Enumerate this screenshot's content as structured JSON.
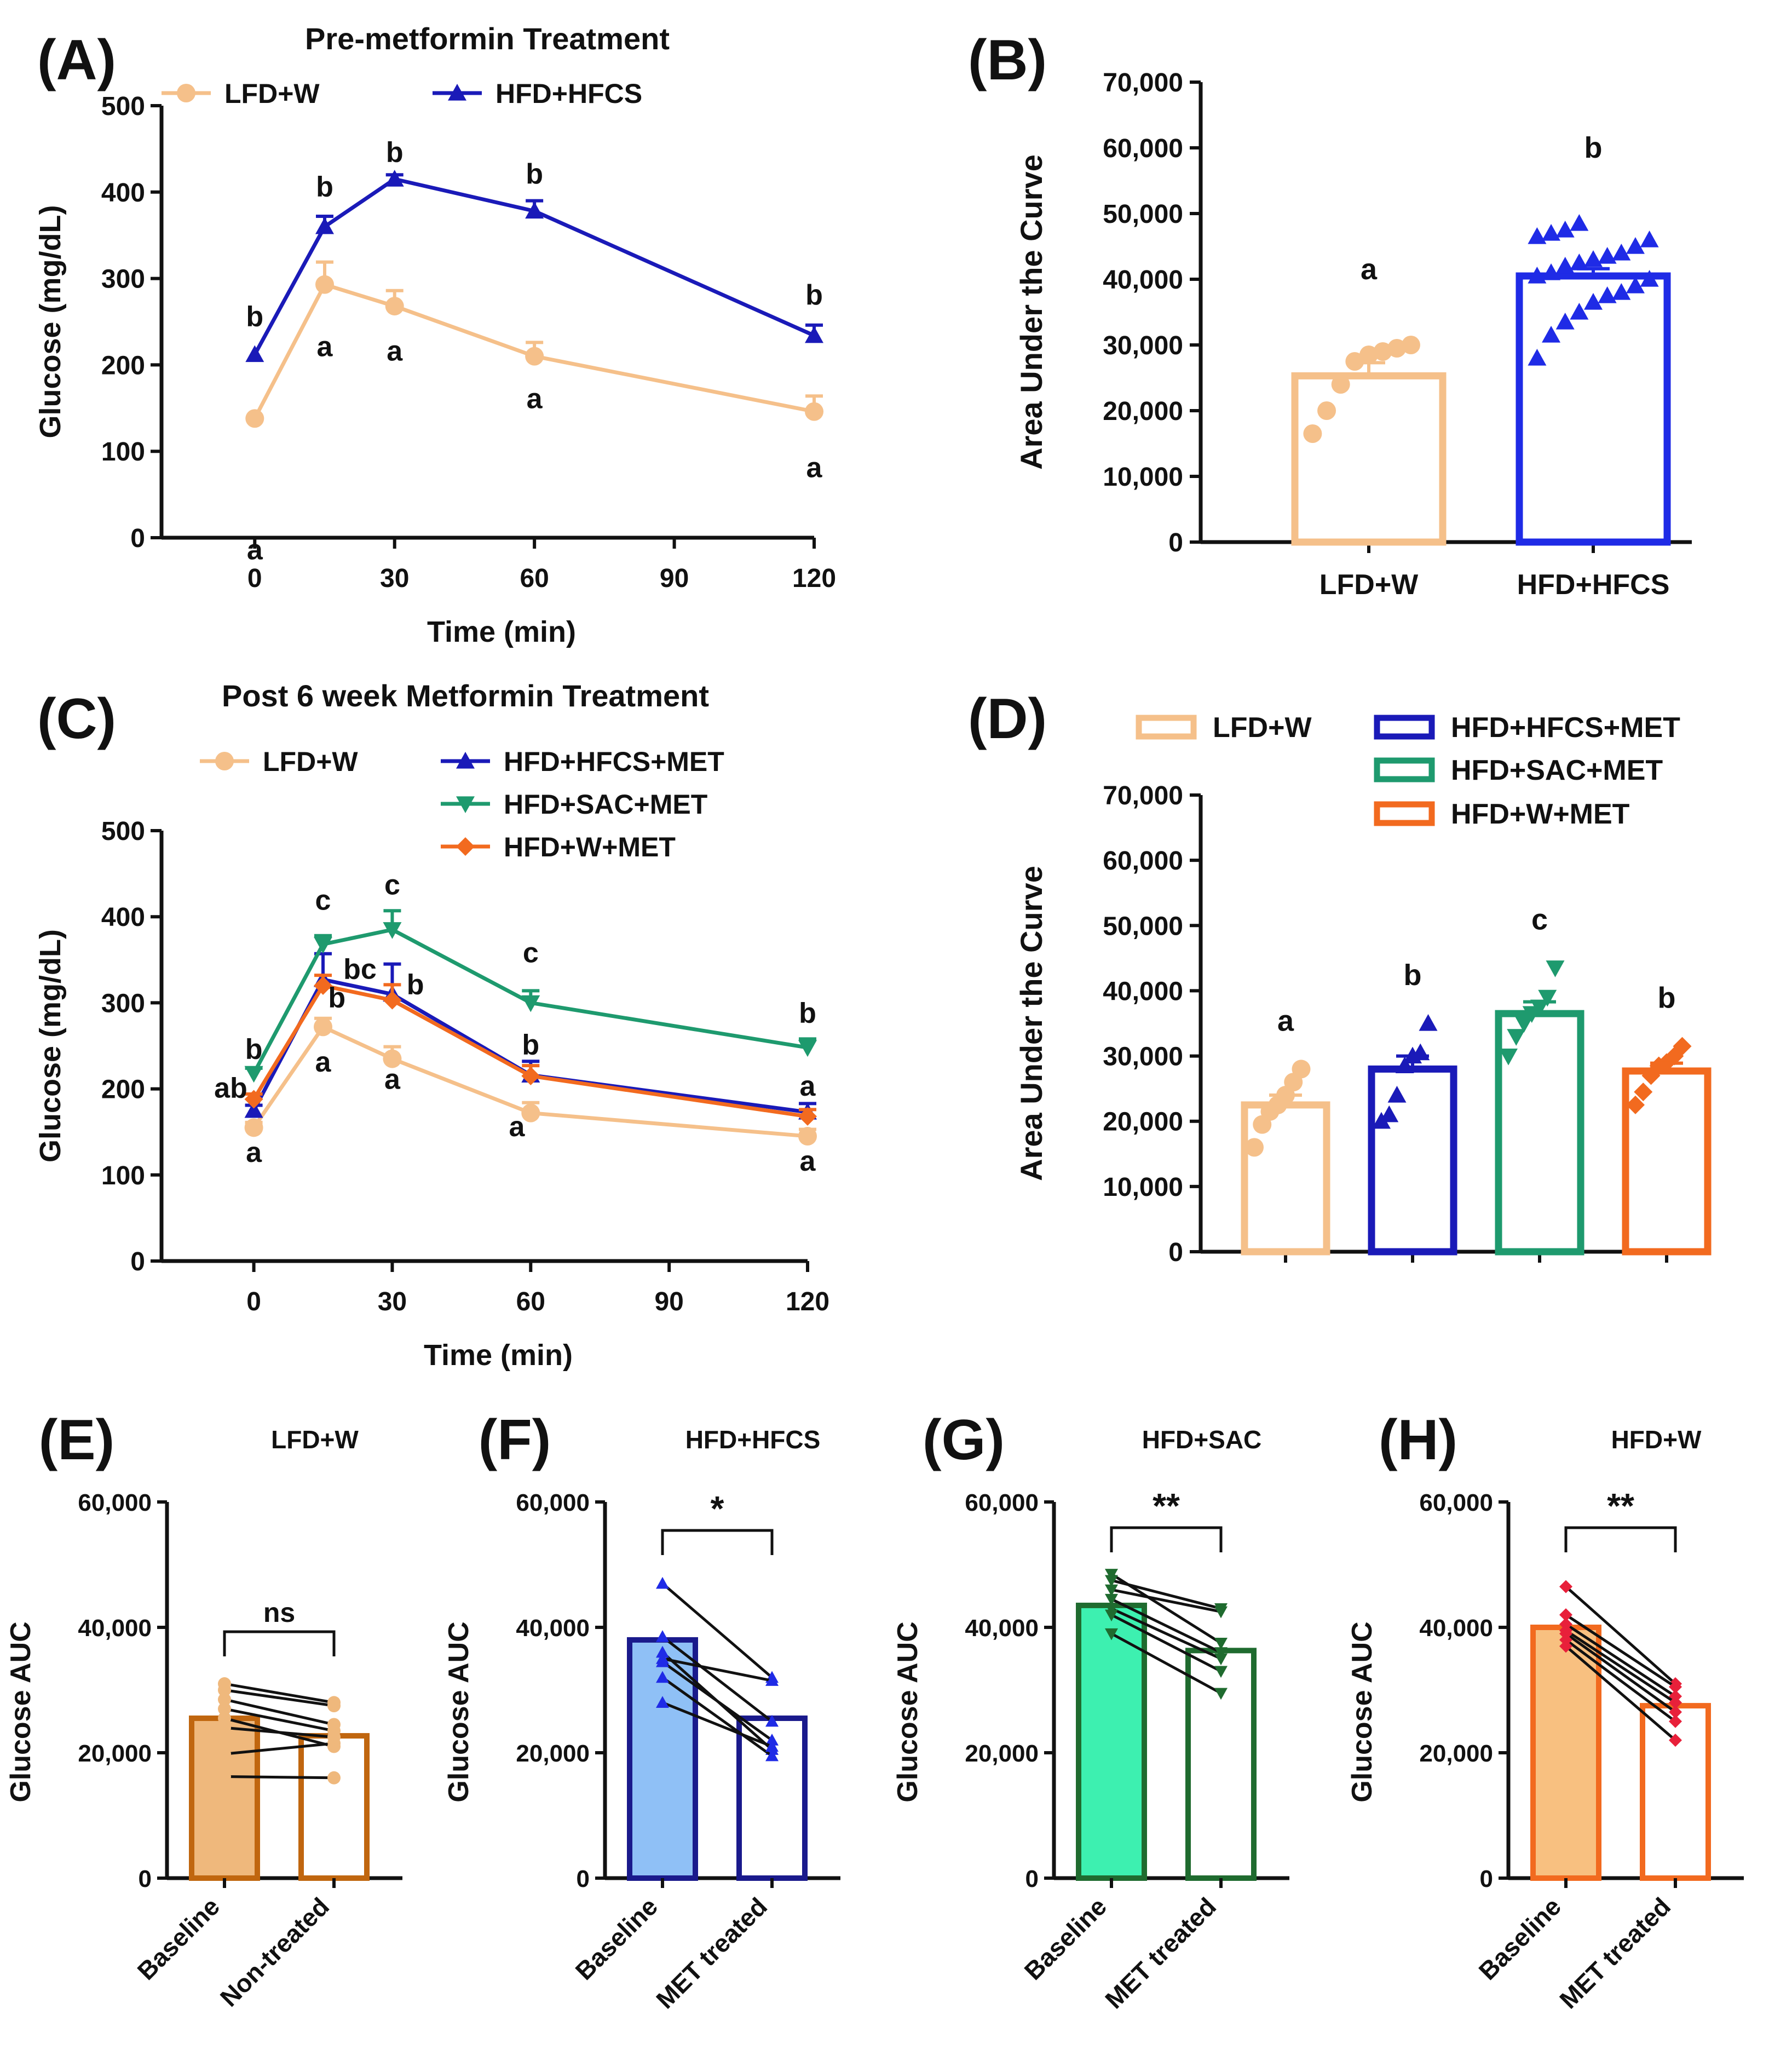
{
  "colors": {
    "lfd_w": "#F5C08A",
    "hfd_hfcs": "#1A1AB8",
    "hfd_hfcs_bar": "#1F2BE6",
    "hfd_sac": "#1E9A6E",
    "hfd_w": "#F26A1F",
    "axis": "#111111",
    "e_base_fill": "#EFB87C",
    "e_stroke": "#C0660F",
    "f_base_fill": "#8FC0F6",
    "f_stroke": "#1A1A8C",
    "g_base_fill": "#3DF0B0",
    "g_stroke": "#1F6B2F",
    "h_base_fill": "#F8C080",
    "h_stroke": "#F26A1F",
    "h_point": "#E8203A"
  },
  "chart_data": [
    {
      "panel": "(A)",
      "type": "line",
      "title": "Pre-metformin Treatment",
      "xlabel": "Time (min)",
      "ylabel": "Glucose (mg/dL)",
      "xlim": [
        -20,
        120
      ],
      "ylim": [
        0,
        500
      ],
      "xticks": [
        0,
        30,
        60,
        90,
        120
      ],
      "yticks": [
        0,
        100,
        200,
        300,
        400,
        500
      ],
      "legend": "top",
      "series": [
        {
          "name": "LFD+W",
          "color": "#F5C08A",
          "marker": "circle",
          "x": [
            0,
            15,
            30,
            60,
            120
          ],
          "values": [
            138,
            293,
            268,
            210,
            146
          ],
          "err": [
            0,
            26,
            18,
            16,
            18
          ],
          "letters": [
            "a",
            "a",
            "a",
            "a",
            "a"
          ]
        },
        {
          "name": "HFD+HFCS",
          "color": "#1A1AB8",
          "marker": "triangle-up",
          "x": [
            0,
            15,
            30,
            60,
            120
          ],
          "values": [
            212,
            360,
            415,
            378,
            234
          ],
          "err": [
            0,
            12,
            5,
            12,
            12
          ],
          "letters": [
            "b",
            "b",
            "b",
            "b",
            "b"
          ]
        }
      ]
    },
    {
      "panel": "(B)",
      "type": "bar",
      "ylabel": "Area Under the Curve",
      "ylim": [
        0,
        70000
      ],
      "yticks": [
        "0",
        "10,000",
        "20,000",
        "30,000",
        "40,000",
        "50,000",
        "60,000",
        "70,000"
      ],
      "categories": [
        "LFD+W",
        "HFD+HFCS"
      ],
      "values": [
        25300,
        40500
      ],
      "err": [
        2000,
        1100
      ],
      "letters": [
        "a",
        "b"
      ],
      "points": [
        [
          16500,
          20000,
          24000,
          27500,
          28500,
          29000,
          29500,
          30000
        ],
        [
          28000,
          31500,
          33500,
          35000,
          36500,
          37500,
          38000,
          39000,
          40000,
          40500,
          41000,
          42000,
          42500,
          43000,
          43500,
          44000,
          45000,
          46000,
          46500,
          47000,
          47500,
          48500
        ]
      ]
    },
    {
      "panel": "(C)",
      "type": "line",
      "title": "Post 6 week Metformin Treatment",
      "xlabel": "Time (min)",
      "ylabel": "Glucose (mg/dL)",
      "xlim": [
        -20,
        120
      ],
      "ylim": [
        0,
        500
      ],
      "xticks": [
        0,
        30,
        60,
        90,
        120
      ],
      "yticks": [
        0,
        100,
        200,
        300,
        400,
        500
      ],
      "legend": "top",
      "series": [
        {
          "name": "LFD+W",
          "color": "#F5C08A",
          "marker": "circle",
          "x": [
            0,
            15,
            30,
            60,
            120
          ],
          "values": [
            155,
            272,
            235,
            172,
            145
          ],
          "err": [
            6,
            10,
            14,
            12,
            8
          ]
        },
        {
          "name": "HFD+HFCS+MET",
          "color": "#1A1AB8",
          "marker": "triangle-up",
          "x": [
            0,
            15,
            30,
            60,
            120
          ],
          "values": [
            175,
            327,
            310,
            216,
            173
          ],
          "err": [
            6,
            30,
            35,
            16,
            10
          ]
        },
        {
          "name": "HFD+SAC+MET",
          "color": "#1E9A6E",
          "marker": "triangle-down",
          "x": [
            0,
            15,
            30,
            60,
            120
          ],
          "values": [
            218,
            368,
            385,
            300,
            248
          ],
          "err": [
            6,
            10,
            22,
            14,
            10
          ]
        },
        {
          "name": "HFD+W+MET",
          "color": "#F26A1F",
          "marker": "diamond",
          "x": [
            0,
            15,
            30,
            60,
            120
          ],
          "values": [
            188,
            320,
            303,
            215,
            168
          ],
          "err": [
            6,
            12,
            18,
            12,
            8
          ]
        }
      ],
      "annotations": [
        "b",
        "ab",
        "a",
        "c",
        "bc",
        "b",
        "a",
        "c",
        "b",
        "a",
        "c",
        "b",
        "a",
        "b",
        "a",
        "a"
      ]
    },
    {
      "panel": "(D)",
      "type": "bar",
      "ylabel": "Area Under the Curve",
      "ylim": [
        0,
        70000
      ],
      "yticks": [
        "0",
        "10,000",
        "20,000",
        "30,000",
        "40,000",
        "50,000",
        "60,000",
        "70,000"
      ],
      "categories": [
        "LFD+W",
        "HFD+HFCS+MET",
        "HFD+SAC+MET",
        "HFD+W+MET"
      ],
      "values": [
        22500,
        28000,
        36500,
        27700
      ],
      "err": [
        1500,
        2000,
        1800,
        1200
      ],
      "letters": [
        "a",
        "b",
        "c",
        "b"
      ],
      "points": [
        [
          16000,
          19500,
          21500,
          22500,
          24000,
          26000,
          28000
        ],
        [
          20000,
          21000,
          24000,
          28500,
          30000,
          30500,
          35000
        ],
        [
          30000,
          33000,
          35000,
          36500,
          37500,
          39000,
          43500
        ],
        [
          22500,
          24500,
          27000,
          28500,
          29000,
          30000,
          31500
        ]
      ]
    },
    {
      "panel": "(E)",
      "type": "bar",
      "title": "LFD+W",
      "ylabel": "Glucose AUC",
      "ylim": [
        0,
        60000
      ],
      "yticks": [
        "0",
        "20,000",
        "40,000",
        "60,000"
      ],
      "categories": [
        "Baseline",
        "Non-treated"
      ],
      "values": [
        25500,
        22700
      ],
      "significance": "ns",
      "pairs": [
        [
          16200,
          16000
        ],
        [
          19800,
          21500
        ],
        [
          24000,
          22500
        ],
        [
          25500,
          21000
        ],
        [
          27000,
          23500
        ],
        [
          28500,
          24500
        ],
        [
          30000,
          27500
        ],
        [
          31000,
          28000
        ]
      ]
    },
    {
      "panel": "(F)",
      "type": "bar",
      "title": "HFD+HFCS",
      "ylabel": "Glucose AUC",
      "ylim": [
        0,
        60000
      ],
      "yticks": [
        "0",
        "20,000",
        "40,000",
        "60,000"
      ],
      "categories": [
        "Baseline",
        "MET treated"
      ],
      "values": [
        38000,
        25500
      ],
      "significance": "*",
      "pairs": [
        [
          47000,
          32000
        ],
        [
          38500,
          25000
        ],
        [
          36000,
          20500
        ],
        [
          35000,
          31500
        ],
        [
          34500,
          22000
        ],
        [
          32000,
          19500
        ],
        [
          28000,
          21000
        ]
      ]
    },
    {
      "panel": "(G)",
      "type": "bar",
      "title": "HFD+SAC",
      "ylabel": "Glucose AUC",
      "ylim": [
        0,
        60000
      ],
      "yticks": [
        "0",
        "20,000",
        "40,000",
        "60,000"
      ],
      "categories": [
        "Baseline",
        "MET treated"
      ],
      "values": [
        43500,
        36300
      ],
      "significance": "**",
      "pairs": [
        [
          48500,
          37500
        ],
        [
          47500,
          43000
        ],
        [
          46000,
          42500
        ],
        [
          44500,
          36000
        ],
        [
          43000,
          35000
        ],
        [
          42000,
          33000
        ],
        [
          39000,
          29500
        ]
      ]
    },
    {
      "panel": "(H)",
      "type": "bar",
      "title": "HFD+W",
      "ylabel": "Glucose AUC",
      "ylim": [
        0,
        60000
      ],
      "yticks": [
        "0",
        "20,000",
        "40,000",
        "60,000"
      ],
      "categories": [
        "Baseline",
        "MET treated"
      ],
      "values": [
        40000,
        27500
      ],
      "significance": "**",
      "pairs": [
        [
          46500,
          31000
        ],
        [
          42000,
          30500
        ],
        [
          40500,
          29000
        ],
        [
          39500,
          28000
        ],
        [
          39000,
          26500
        ],
        [
          38000,
          25000
        ],
        [
          37000,
          22000
        ]
      ]
    }
  ]
}
